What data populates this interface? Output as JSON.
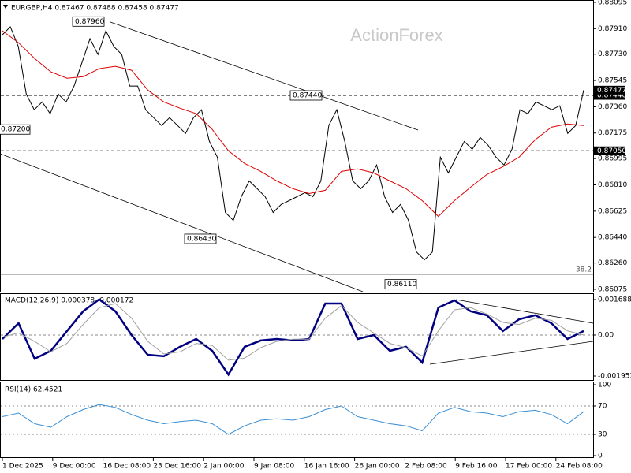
{
  "header": "EURGBP,H4  0.87467 0.87488 0.87458 0.87477",
  "watermark": "ActionForex",
  "chart_data": [
    {
      "type": "line",
      "ylim": [
        0.86058,
        0.88106
      ],
      "yticks": [
        {
          "value": 0.88095,
          "label": "0.88095"
        },
        {
          "value": 0.8791,
          "label": "0.87910"
        },
        {
          "value": 0.8773,
          "label": "0.87730"
        },
        {
          "value": 0.87545,
          "label": "0.87545"
        },
        {
          "value": 0.8736,
          "label": "0.87360"
        },
        {
          "value": 0.87175,
          "label": "0.87175"
        },
        {
          "value": 0.86995,
          "label": "0.86995"
        },
        {
          "value": 0.8681,
          "label": "0.86810"
        },
        {
          "value": 0.86625,
          "label": "0.86625"
        },
        {
          "value": 0.8644,
          "label": "0.86440"
        },
        {
          "value": 0.8626,
          "label": "0.86260"
        },
        {
          "value": 0.86075,
          "label": "0.86075"
        }
      ],
      "series": [
        {
          "color": "#000000",
          "values": [
            0.87867,
            0.87923,
            0.87784,
            0.8745,
            0.87339,
            0.87394,
            0.87311,
            0.8745,
            0.87394,
            0.87506,
            0.87672,
            0.87839,
            0.87728,
            0.87895,
            0.87784,
            0.87728,
            0.87506,
            0.87506,
            0.87339,
            0.87283,
            0.87228,
            0.87283,
            0.87228,
            0.87172,
            0.87283,
            0.87339,
            0.87116,
            0.87005,
            0.86616,
            0.8656,
            0.86727,
            0.86838,
            0.86783,
            0.86727,
            0.86616,
            0.86672,
            0.86699,
            0.86727,
            0.86755,
            0.86727,
            0.86838,
            0.87228,
            0.87339,
            0.87116,
            0.86838,
            0.86783,
            0.86838,
            0.8695,
            0.86727,
            0.86616,
            0.86672,
            0.8656,
            0.86338,
            0.86282,
            0.86338,
            0.87005,
            0.86894,
            0.87005,
            0.87116,
            0.87061,
            0.87144,
            0.87089,
            0.87005,
            0.8695,
            0.87061,
            0.87339,
            0.87311,
            0.87394,
            0.87367,
            0.87339,
            0.87367,
            0.87172,
            0.87228,
            0.87477
          ]
        },
        {
          "color": "#e00000",
          "values": [
            0.87895,
            0.87811,
            0.877,
            0.87606,
            0.87561,
            0.87572,
            0.87628,
            0.87645,
            0.87617,
            0.87478,
            0.87394,
            0.8735,
            0.87311,
            0.872,
            0.8705,
            0.86961,
            0.86905,
            0.86838,
            0.86783,
            0.86749,
            0.86772,
            0.86905,
            0.86922,
            0.86894,
            0.86838,
            0.86783,
            0.86699,
            0.86588,
            0.86699,
            0.86794,
            0.86883,
            0.86938,
            0.87005,
            0.87128,
            0.87216,
            0.87239,
            0.87228
          ]
        }
      ],
      "hlines": [
        {
          "value": 0.8744,
          "label": "0.87440"
        },
        {
          "value": 0.8705,
          "label": "0.87050"
        }
      ],
      "last_price": {
        "value": 0.87477,
        "label": "0.87477"
      },
      "fib_level": {
        "price": 0.8618,
        "label": "38.2"
      },
      "annotations": [
        {
          "value": 0.8796,
          "label": "0.87960"
        },
        {
          "value": 0.8744,
          "label": "0.87440"
        },
        {
          "value": 0.8643,
          "label": "0.86430"
        },
        {
          "value": 0.8611,
          "label": "0.86110"
        },
        {
          "value": 0.872,
          "label": "0.87200"
        }
      ]
    },
    {
      "type": "line",
      "title": "MACD(12,26,9) 0.000378 -0.000172",
      "ylim": [
        -0.00214,
        0.00195
      ],
      "yticks": [
        0.001688,
        {
          "value": 0,
          "label": "0.00"
        },
        -0.001953
      ],
      "series": [
        {
          "color": "#000080",
          "values": [
            -0.00019,
            0.00056,
            -0.00113,
            -0.00075,
            0.00019,
            0.00113,
            0.0017,
            0.00113,
            0,
            -0.00094,
            -0.00101,
            -0.00056,
            -0.00019,
            -0.00075,
            -0.00188,
            -0.00056,
            -0.00026,
            -0.00019,
            -0.00026,
            -0.00019,
            0.0015,
            0.0015,
            -0.00019,
            0,
            -0.00075,
            -0.00056,
            -0.00131,
            0.00131,
            0.00165,
            0.00113,
            0.00094,
            0.00019,
            0.00075,
            0.00094,
            0.00056,
            -0.00019,
            0.00019
          ]
        },
        {
          "color": "#a0a0a0",
          "values": [
            -0.0001,
            0.0001,
            -0.0003,
            -0.0008,
            -0.0004,
            0.0005,
            0.0013,
            0.0015,
            0.0008,
            -0.0003,
            -0.0009,
            -0.0008,
            -0.0004,
            -0.0005,
            -0.0012,
            -0.0011,
            -0.0006,
            -0.0003,
            -0.0002,
            -0.0002,
            0.0008,
            0.0014,
            0.0006,
            0.0001,
            -0.0004,
            -0.0006,
            -0.001,
            0.0002,
            0.0012,
            0.0013,
            0.001,
            0.0006,
            0.0005,
            0.0008,
            0.0007,
            0.0002,
            0
          ]
        }
      ]
    },
    {
      "type": "line",
      "title": "RSI(14) 62.4521",
      "ylim": [
        0,
        100
      ],
      "yticks": [
        100,
        70,
        30,
        0
      ],
      "series": [
        {
          "color": "#3a8fd6",
          "values": [
            55,
            60,
            45,
            40,
            55,
            65,
            72,
            68,
            58,
            50,
            45,
            48,
            50,
            45,
            30,
            42,
            50,
            52,
            50,
            55,
            65,
            70,
            55,
            50,
            45,
            42,
            35,
            60,
            68,
            62,
            60,
            55,
            62,
            64,
            58,
            45,
            62
          ]
        }
      ],
      "x_labels": [
        "1 Dec 2025",
        "9 Dec 00:00",
        "16 Dec 08:00",
        "23 Dec 16:00",
        "2 Jan 00:00",
        "9 Jan 08:00",
        "16 Jan 16:00",
        "26 Jan 00:00",
        "2 Feb 08:00",
        "9 Feb 16:00",
        "17 Feb 00:00",
        "24 Feb 08:00"
      ]
    }
  ]
}
